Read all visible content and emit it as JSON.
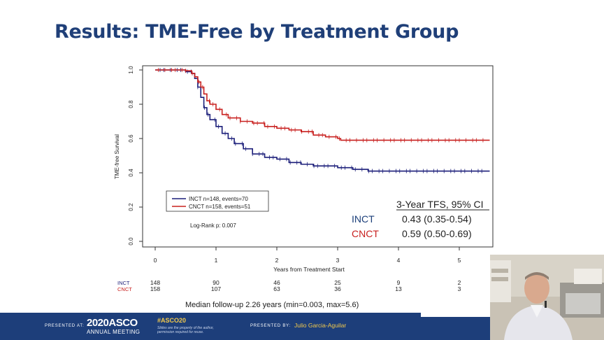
{
  "slide": {
    "title": "Results: TME-Free by Treatment Group",
    "median_followup": "Median follow-up 2.26 years (min=0.003, max=5.6)"
  },
  "chart_data": {
    "type": "line",
    "subtype": "kaplan-meier",
    "xlabel": "Years from Treatment Start",
    "ylabel": "TME-free Survival",
    "xlim": [
      -0.2,
      5.5
    ],
    "ylim": [
      0,
      1
    ],
    "x_ticks": [
      "0",
      "1",
      "2",
      "3",
      "4",
      "5"
    ],
    "y_ticks": [
      "0.0",
      "0.2",
      "0.4",
      "0.6",
      "0.8",
      "1.0"
    ],
    "legend": [
      "INCT  n=148, events=70",
      "CNCT  n=158, events=51"
    ],
    "legend_placement": "bottom-left",
    "annotation": "Log-Rank p: 0.007",
    "series": [
      {
        "name": "INCT",
        "color": "#1c1f7a",
        "points": [
          [
            0,
            1.0
          ],
          [
            0.3,
            1.0
          ],
          [
            0.5,
            0.99
          ],
          [
            0.6,
            0.98
          ],
          [
            0.65,
            0.95
          ],
          [
            0.7,
            0.9
          ],
          [
            0.75,
            0.84
          ],
          [
            0.8,
            0.78
          ],
          [
            0.85,
            0.74
          ],
          [
            0.9,
            0.71
          ],
          [
            1.0,
            0.67
          ],
          [
            1.1,
            0.63
          ],
          [
            1.2,
            0.6
          ],
          [
            1.3,
            0.57
          ],
          [
            1.45,
            0.54
          ],
          [
            1.6,
            0.51
          ],
          [
            1.8,
            0.49
          ],
          [
            2.0,
            0.48
          ],
          [
            2.2,
            0.46
          ],
          [
            2.4,
            0.45
          ],
          [
            2.6,
            0.44
          ],
          [
            3.0,
            0.43
          ],
          [
            3.25,
            0.42
          ],
          [
            3.5,
            0.41
          ],
          [
            4.0,
            0.41
          ],
          [
            5.5,
            0.41
          ]
        ]
      },
      {
        "name": "CNCT",
        "color": "#c8201f",
        "points": [
          [
            0,
            1.0
          ],
          [
            0.3,
            1.0
          ],
          [
            0.5,
            0.995
          ],
          [
            0.6,
            0.98
          ],
          [
            0.65,
            0.96
          ],
          [
            0.7,
            0.93
          ],
          [
            0.75,
            0.9
          ],
          [
            0.8,
            0.86
          ],
          [
            0.85,
            0.82
          ],
          [
            0.9,
            0.8
          ],
          [
            1.0,
            0.77
          ],
          [
            1.1,
            0.74
          ],
          [
            1.2,
            0.72
          ],
          [
            1.4,
            0.7
          ],
          [
            1.6,
            0.69
          ],
          [
            1.8,
            0.67
          ],
          [
            2.0,
            0.66
          ],
          [
            2.2,
            0.65
          ],
          [
            2.4,
            0.64
          ],
          [
            2.6,
            0.62
          ],
          [
            2.8,
            0.61
          ],
          [
            3.0,
            0.6
          ],
          [
            3.05,
            0.59
          ],
          [
            3.5,
            0.59
          ],
          [
            4.0,
            0.59
          ],
          [
            5.5,
            0.59
          ]
        ]
      }
    ],
    "risk_table": {
      "times": [
        "0",
        "1",
        "2",
        "3",
        "4",
        "5"
      ],
      "rows": [
        {
          "label": "INCT",
          "values": [
            "148",
            "90",
            "46",
            "25",
            "9",
            "2"
          ],
          "color": "#1c1f7a"
        },
        {
          "label": "CNCT",
          "values": [
            "158",
            "107",
            "63",
            "36",
            "13",
            "3"
          ],
          "color": "#c8201f"
        }
      ]
    },
    "tfs_table": {
      "header": "3-Year TFS, 95% CI",
      "rows": [
        {
          "label": "INCT",
          "value": "0.43 (0.35-0.54)",
          "color": "#1c3f7a"
        },
        {
          "label": "CNCT",
          "value": "0.59 (0.50-0.69)",
          "color": "#c8201f"
        }
      ]
    }
  },
  "footer": {
    "presented_at": "PRESENTED AT:",
    "asco_year": "2020ASCO",
    "asco_sub": "ANNUAL MEETING",
    "hashtag": "#ASCO20",
    "disclaimer": "Slides are the property of the author, permission required for reuse.",
    "presented_by": "PRESENTED BY:",
    "presenter": "Julio Garcia-Aguilar"
  }
}
